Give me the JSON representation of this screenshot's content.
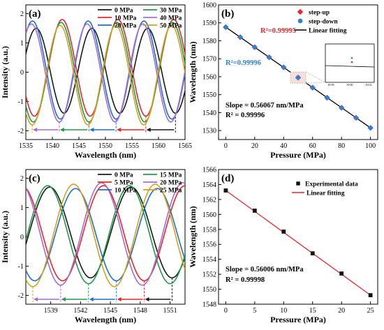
{
  "chart_data": [
    {
      "panel": "(a)",
      "type": "line",
      "xlabel": "Wavelength (nm)",
      "ylabel": "Intensity (a.u.)",
      "xlim": [
        1535,
        1565
      ],
      "ylim": [
        -2.3,
        2.3
      ],
      "xticks": [
        1535,
        1540,
        1545,
        1550,
        1555,
        1560,
        1565
      ],
      "yticks": [
        -2,
        -1,
        0,
        1,
        2
      ],
      "fsr": 10.5,
      "series": [
        {
          "name": "0 MPa",
          "color": "#1a1a1a",
          "dip": 1563.2,
          "min": -1.4,
          "max": 1.5
        },
        {
          "name": "10 MPa",
          "color": "#e8272a",
          "dip": 1557.6,
          "min": -1.5,
          "max": 1.8
        },
        {
          "name": "20 MPa",
          "color": "#1e6fd0",
          "dip": 1552.0,
          "min": -1.6,
          "max": 1.75
        },
        {
          "name": "30 MPa",
          "color": "#1f9b4a",
          "dip": 1546.9,
          "min": -1.7,
          "max": 1.7
        },
        {
          "name": "40 MPa",
          "color": "#a66bd3",
          "dip": 1541.3,
          "min": -1.7,
          "max": 1.65
        },
        {
          "name": "50 MPa",
          "color": "#d6a21c",
          "dip": 1536.2,
          "min": -1.8,
          "max": 1.6
        }
      ]
    },
    {
      "panel": "(b)",
      "type": "scatter",
      "xlabel": "Pressure (MPa)",
      "ylabel": "Wavelength (nm)",
      "xlim": [
        -5,
        105
      ],
      "ylim": [
        1525,
        1600
      ],
      "xticks": [
        0,
        20,
        40,
        60,
        80,
        100
      ],
      "yticks": [
        1530,
        1540,
        1550,
        1560,
        1570,
        1580,
        1590,
        1600
      ],
      "x": [
        0,
        10,
        20,
        30,
        40,
        50,
        60,
        70,
        80,
        90,
        100
      ],
      "series": [
        {
          "name": "step-up",
          "color": "#e8272a",
          "marker": "diamond",
          "values": [
            1587.6,
            1582.0,
            1576.4,
            1570.8,
            1565.2,
            1559.5,
            1553.9,
            1548.3,
            1542.7,
            1537.1,
            1531.5
          ]
        },
        {
          "name": "step-down",
          "color": "#2f80d8",
          "marker": "circle",
          "values": [
            1587.6,
            1582.0,
            1576.4,
            1570.8,
            1565.2,
            1559.6,
            1553.9,
            1548.3,
            1542.7,
            1537.1,
            1531.5
          ]
        },
        {
          "name": "Linear fitting",
          "color": "#000000",
          "marker": "line",
          "fit": {
            "slope": -0.56067,
            "intercept": 1587.6
          }
        }
      ],
      "annotations": {
        "r2_up": "R²=0.99995",
        "r2_down": "R²=0.99996",
        "slope": "Slope = 0.56067 nm/MPa",
        "r2": "R² = 0.99996"
      },
      "inset_ticks": [
        "49.98",
        "50.00",
        "50.02"
      ]
    },
    {
      "panel": "(c)",
      "type": "line",
      "xlabel": "Wavelength (nm)",
      "ylabel": "Intensity (a.u.)",
      "xlim": [
        1536.5,
        1552.5
      ],
      "ylim": [
        -2.3,
        2.3
      ],
      "xticks": [
        1539,
        1542,
        1545,
        1548,
        1551
      ],
      "yticks": [
        -2,
        -1,
        0,
        1,
        2
      ],
      "fsr": 8.2,
      "series": [
        {
          "name": "0 MPa",
          "color": "#1a1a1a",
          "dip": 1551.2,
          "min": -1.4,
          "max": 1.7
        },
        {
          "name": "5 MPa",
          "color": "#e8272a",
          "dip": 1548.4,
          "min": -1.5,
          "max": 1.75
        },
        {
          "name": "10 MPa",
          "color": "#1e6fd0",
          "dip": 1545.6,
          "min": -1.5,
          "max": 1.65
        },
        {
          "name": "15 MPa",
          "color": "#1f9b4a",
          "dip": 1542.8,
          "min": -1.6,
          "max": 1.75
        },
        {
          "name": "20 MPa",
          "color": "#a66bd3",
          "dip": 1540.0,
          "min": -1.65,
          "max": 1.85
        },
        {
          "name": "25 MPa",
          "color": "#d6a21c",
          "dip": 1537.2,
          "min": -1.7,
          "max": 1.8
        }
      ]
    },
    {
      "panel": "(d)",
      "type": "scatter",
      "xlabel": "Pressure (MPa)",
      "ylabel": "Wavelength (nm)",
      "xlim": [
        -1.25,
        26.25
      ],
      "ylim": [
        1548,
        1566
      ],
      "xticks": [
        0,
        5,
        10,
        15,
        20,
        25
      ],
      "yticks": [
        1548,
        1550,
        1552,
        1554,
        1556,
        1558,
        1560,
        1562,
        1564,
        1566
      ],
      "x": [
        0,
        5,
        10,
        15,
        20,
        25
      ],
      "series": [
        {
          "name": "Experimental data",
          "color": "#111111",
          "marker": "square",
          "values": [
            1563.2,
            1560.5,
            1557.7,
            1554.8,
            1552.1,
            1549.2
          ]
        },
        {
          "name": "Linear fitting",
          "color": "#e8272a",
          "marker": "line",
          "fit": {
            "slope": -0.56006,
            "intercept": 1563.2
          }
        }
      ],
      "annotations": {
        "slope": "Slope = 0.56006 nm/MPa",
        "r2": "R² = 0.99998"
      }
    }
  ]
}
